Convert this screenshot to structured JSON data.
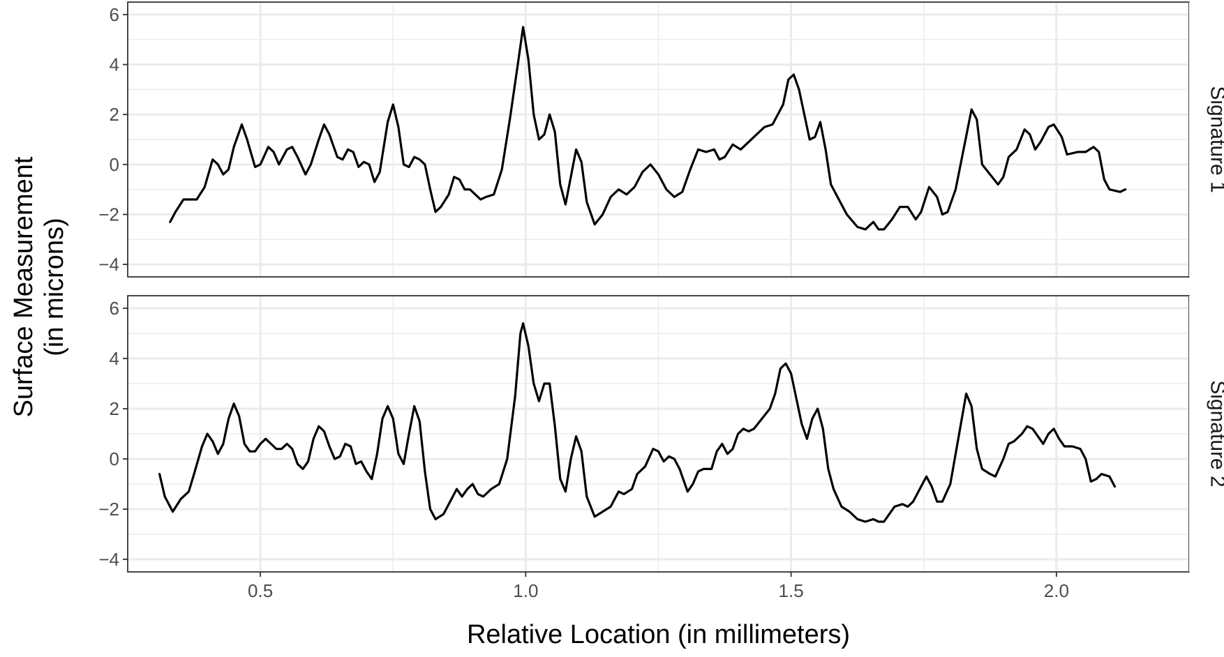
{
  "chart_data": {
    "type": "line",
    "xlabel": "Relative Location (in millimeters)",
    "ylabel_lines": [
      "Surface Measurement",
      "(in microns)"
    ],
    "xlim": [
      0.25,
      2.25
    ],
    "ylim": [
      -4.5,
      6.5
    ],
    "x_ticks": [
      0.5,
      1.0,
      1.5,
      2.0
    ],
    "x_tick_labels": [
      "0.5",
      "1.0",
      "1.5",
      "2.0"
    ],
    "y_ticks": [
      -4,
      -2,
      0,
      2,
      4,
      6
    ],
    "y_tick_labels": [
      "−4",
      "−2",
      "0",
      "2",
      "4",
      "6"
    ],
    "grid": true,
    "facet_position": "right",
    "line_color": "#000000",
    "grid_color": "#ebebeb",
    "panels": [
      {
        "label": "Signature 1",
        "points": [
          [
            0.33,
            -2.3
          ],
          [
            0.34,
            -1.9
          ],
          [
            0.355,
            -1.4
          ],
          [
            0.38,
            -1.4
          ],
          [
            0.395,
            -0.9
          ],
          [
            0.41,
            0.2
          ],
          [
            0.42,
            0.0
          ],
          [
            0.43,
            -0.4
          ],
          [
            0.44,
            -0.2
          ],
          [
            0.45,
            0.7
          ],
          [
            0.465,
            1.6
          ],
          [
            0.475,
            1.0
          ],
          [
            0.49,
            -0.1
          ],
          [
            0.5,
            0.0
          ],
          [
            0.515,
            0.7
          ],
          [
            0.525,
            0.5
          ],
          [
            0.535,
            0.0
          ],
          [
            0.55,
            0.6
          ],
          [
            0.56,
            0.7
          ],
          [
            0.57,
            0.3
          ],
          [
            0.585,
            -0.4
          ],
          [
            0.595,
            0.0
          ],
          [
            0.61,
            1.0
          ],
          [
            0.62,
            1.6
          ],
          [
            0.63,
            1.2
          ],
          [
            0.645,
            0.3
          ],
          [
            0.655,
            0.2
          ],
          [
            0.665,
            0.6
          ],
          [
            0.675,
            0.5
          ],
          [
            0.685,
            -0.1
          ],
          [
            0.695,
            0.1
          ],
          [
            0.705,
            0.0
          ],
          [
            0.715,
            -0.7
          ],
          [
            0.725,
            -0.3
          ],
          [
            0.74,
            1.7
          ],
          [
            0.75,
            2.4
          ],
          [
            0.76,
            1.5
          ],
          [
            0.77,
            0.0
          ],
          [
            0.78,
            -0.1
          ],
          [
            0.79,
            0.3
          ],
          [
            0.8,
            0.2
          ],
          [
            0.81,
            0.0
          ],
          [
            0.82,
            -1.0
          ],
          [
            0.83,
            -1.9
          ],
          [
            0.84,
            -1.7
          ],
          [
            0.855,
            -1.2
          ],
          [
            0.865,
            -0.5
          ],
          [
            0.875,
            -0.6
          ],
          [
            0.885,
            -1.0
          ],
          [
            0.895,
            -1.0
          ],
          [
            0.905,
            -1.2
          ],
          [
            0.915,
            -1.4
          ],
          [
            0.925,
            -1.3
          ],
          [
            0.94,
            -1.2
          ],
          [
            0.955,
            -0.2
          ],
          [
            0.97,
            1.8
          ],
          [
            0.985,
            4.0
          ],
          [
            0.995,
            5.5
          ],
          [
            1.005,
            4.2
          ],
          [
            1.015,
            2.0
          ],
          [
            1.025,
            1.0
          ],
          [
            1.035,
            1.2
          ],
          [
            1.045,
            2.0
          ],
          [
            1.055,
            1.3
          ],
          [
            1.065,
            -0.8
          ],
          [
            1.075,
            -1.6
          ],
          [
            1.085,
            -0.5
          ],
          [
            1.095,
            0.6
          ],
          [
            1.105,
            0.1
          ],
          [
            1.115,
            -1.5
          ],
          [
            1.13,
            -2.4
          ],
          [
            1.145,
            -2.0
          ],
          [
            1.16,
            -1.3
          ],
          [
            1.175,
            -1.0
          ],
          [
            1.19,
            -1.2
          ],
          [
            1.205,
            -0.9
          ],
          [
            1.22,
            -0.3
          ],
          [
            1.235,
            0.0
          ],
          [
            1.25,
            -0.4
          ],
          [
            1.265,
            -1.0
          ],
          [
            1.28,
            -1.3
          ],
          [
            1.295,
            -1.1
          ],
          [
            1.31,
            -0.2
          ],
          [
            1.325,
            0.6
          ],
          [
            1.34,
            0.5
          ],
          [
            1.355,
            0.6
          ],
          [
            1.365,
            0.2
          ],
          [
            1.375,
            0.3
          ],
          [
            1.39,
            0.8
          ],
          [
            1.405,
            0.6
          ],
          [
            1.42,
            0.9
          ],
          [
            1.435,
            1.2
          ],
          [
            1.45,
            1.5
          ],
          [
            1.465,
            1.6
          ],
          [
            1.475,
            2.0
          ],
          [
            1.485,
            2.4
          ],
          [
            1.495,
            3.4
          ],
          [
            1.505,
            3.6
          ],
          [
            1.515,
            3.0
          ],
          [
            1.525,
            2.0
          ],
          [
            1.535,
            1.0
          ],
          [
            1.545,
            1.1
          ],
          [
            1.555,
            1.7
          ],
          [
            1.565,
            0.6
          ],
          [
            1.575,
            -0.8
          ],
          [
            1.59,
            -1.4
          ],
          [
            1.605,
            -2.0
          ],
          [
            1.625,
            -2.5
          ],
          [
            1.64,
            -2.6
          ],
          [
            1.655,
            -2.3
          ],
          [
            1.665,
            -2.6
          ],
          [
            1.675,
            -2.6
          ],
          [
            1.69,
            -2.2
          ],
          [
            1.705,
            -1.7
          ],
          [
            1.72,
            -1.7
          ],
          [
            1.735,
            -2.2
          ],
          [
            1.745,
            -1.9
          ],
          [
            1.76,
            -0.9
          ],
          [
            1.775,
            -1.3
          ],
          [
            1.785,
            -2.0
          ],
          [
            1.795,
            -1.9
          ],
          [
            1.81,
            -1.0
          ],
          [
            1.825,
            0.6
          ],
          [
            1.84,
            2.2
          ],
          [
            1.85,
            1.8
          ],
          [
            1.86,
            0.0
          ],
          [
            1.875,
            -0.4
          ],
          [
            1.89,
            -0.8
          ],
          [
            1.9,
            -0.5
          ],
          [
            1.91,
            0.3
          ],
          [
            1.925,
            0.6
          ],
          [
            1.94,
            1.4
          ],
          [
            1.95,
            1.2
          ],
          [
            1.96,
            0.6
          ],
          [
            1.97,
            0.9
          ],
          [
            1.985,
            1.5
          ],
          [
            1.995,
            1.6
          ],
          [
            2.01,
            1.1
          ],
          [
            2.02,
            0.4
          ],
          [
            2.04,
            0.5
          ],
          [
            2.055,
            0.5
          ],
          [
            2.07,
            0.7
          ],
          [
            2.08,
            0.5
          ],
          [
            2.09,
            -0.6
          ],
          [
            2.1,
            -1.0
          ],
          [
            2.12,
            -1.1
          ],
          [
            2.13,
            -1.0
          ]
        ]
      },
      {
        "label": "Signature 2",
        "points": [
          [
            0.31,
            -0.6
          ],
          [
            0.32,
            -1.5
          ],
          [
            0.335,
            -2.1
          ],
          [
            0.35,
            -1.6
          ],
          [
            0.365,
            -1.3
          ],
          [
            0.375,
            -0.6
          ],
          [
            0.39,
            0.5
          ],
          [
            0.4,
            1.0
          ],
          [
            0.41,
            0.7
          ],
          [
            0.42,
            0.2
          ],
          [
            0.43,
            0.6
          ],
          [
            0.44,
            1.6
          ],
          [
            0.45,
            2.2
          ],
          [
            0.46,
            1.7
          ],
          [
            0.47,
            0.6
          ],
          [
            0.48,
            0.3
          ],
          [
            0.49,
            0.3
          ],
          [
            0.5,
            0.6
          ],
          [
            0.51,
            0.8
          ],
          [
            0.52,
            0.6
          ],
          [
            0.53,
            0.4
          ],
          [
            0.54,
            0.4
          ],
          [
            0.55,
            0.6
          ],
          [
            0.56,
            0.4
          ],
          [
            0.57,
            -0.2
          ],
          [
            0.58,
            -0.4
          ],
          [
            0.59,
            -0.1
          ],
          [
            0.6,
            0.8
          ],
          [
            0.61,
            1.3
          ],
          [
            0.62,
            1.1
          ],
          [
            0.63,
            0.5
          ],
          [
            0.64,
            0.0
          ],
          [
            0.65,
            0.1
          ],
          [
            0.66,
            0.6
          ],
          [
            0.67,
            0.5
          ],
          [
            0.68,
            -0.2
          ],
          [
            0.69,
            -0.1
          ],
          [
            0.7,
            -0.5
          ],
          [
            0.71,
            -0.8
          ],
          [
            0.72,
            0.2
          ],
          [
            0.73,
            1.6
          ],
          [
            0.74,
            2.1
          ],
          [
            0.75,
            1.6
          ],
          [
            0.76,
            0.2
          ],
          [
            0.77,
            -0.2
          ],
          [
            0.78,
            1.0
          ],
          [
            0.79,
            2.1
          ],
          [
            0.8,
            1.5
          ],
          [
            0.81,
            -0.5
          ],
          [
            0.82,
            -2.0
          ],
          [
            0.83,
            -2.4
          ],
          [
            0.845,
            -2.2
          ],
          [
            0.86,
            -1.6
          ],
          [
            0.87,
            -1.2
          ],
          [
            0.88,
            -1.5
          ],
          [
            0.89,
            -1.2
          ],
          [
            0.9,
            -1.0
          ],
          [
            0.91,
            -1.4
          ],
          [
            0.92,
            -1.5
          ],
          [
            0.935,
            -1.2
          ],
          [
            0.95,
            -1.0
          ],
          [
            0.965,
            0.0
          ],
          [
            0.98,
            2.5
          ],
          [
            0.99,
            5.0
          ],
          [
            0.995,
            5.4
          ],
          [
            1.005,
            4.5
          ],
          [
            1.015,
            3.0
          ],
          [
            1.025,
            2.3
          ],
          [
            1.035,
            3.0
          ],
          [
            1.045,
            3.0
          ],
          [
            1.055,
            1.3
          ],
          [
            1.065,
            -0.8
          ],
          [
            1.075,
            -1.3
          ],
          [
            1.085,
            0.0
          ],
          [
            1.095,
            0.9
          ],
          [
            1.105,
            0.3
          ],
          [
            1.115,
            -1.5
          ],
          [
            1.13,
            -2.3
          ],
          [
            1.145,
            -2.1
          ],
          [
            1.16,
            -1.9
          ],
          [
            1.175,
            -1.3
          ],
          [
            1.185,
            -1.4
          ],
          [
            1.2,
            -1.2
          ],
          [
            1.21,
            -0.6
          ],
          [
            1.225,
            -0.3
          ],
          [
            1.24,
            0.4
          ],
          [
            1.25,
            0.3
          ],
          [
            1.26,
            -0.1
          ],
          [
            1.27,
            0.1
          ],
          [
            1.28,
            0.0
          ],
          [
            1.29,
            -0.4
          ],
          [
            1.305,
            -1.3
          ],
          [
            1.315,
            -1.0
          ],
          [
            1.325,
            -0.5
          ],
          [
            1.335,
            -0.4
          ],
          [
            1.35,
            -0.4
          ],
          [
            1.36,
            0.3
          ],
          [
            1.37,
            0.6
          ],
          [
            1.38,
            0.2
          ],
          [
            1.39,
            0.4
          ],
          [
            1.4,
            1.0
          ],
          [
            1.41,
            1.2
          ],
          [
            1.42,
            1.1
          ],
          [
            1.43,
            1.2
          ],
          [
            1.445,
            1.6
          ],
          [
            1.46,
            2.0
          ],
          [
            1.47,
            2.6
          ],
          [
            1.48,
            3.6
          ],
          [
            1.49,
            3.8
          ],
          [
            1.5,
            3.4
          ],
          [
            1.51,
            2.4
          ],
          [
            1.52,
            1.4
          ],
          [
            1.53,
            0.8
          ],
          [
            1.54,
            1.6
          ],
          [
            1.55,
            2.0
          ],
          [
            1.56,
            1.2
          ],
          [
            1.57,
            -0.4
          ],
          [
            1.58,
            -1.2
          ],
          [
            1.595,
            -1.9
          ],
          [
            1.61,
            -2.1
          ],
          [
            1.625,
            -2.4
          ],
          [
            1.64,
            -2.5
          ],
          [
            1.655,
            -2.4
          ],
          [
            1.665,
            -2.5
          ],
          [
            1.675,
            -2.5
          ],
          [
            1.685,
            -2.2
          ],
          [
            1.695,
            -1.9
          ],
          [
            1.71,
            -1.8
          ],
          [
            1.72,
            -1.9
          ],
          [
            1.73,
            -1.7
          ],
          [
            1.745,
            -1.1
          ],
          [
            1.755,
            -0.7
          ],
          [
            1.765,
            -1.1
          ],
          [
            1.775,
            -1.7
          ],
          [
            1.785,
            -1.7
          ],
          [
            1.8,
            -1.0
          ],
          [
            1.815,
            0.8
          ],
          [
            1.83,
            2.6
          ],
          [
            1.84,
            2.1
          ],
          [
            1.85,
            0.4
          ],
          [
            1.86,
            -0.4
          ],
          [
            1.875,
            -0.6
          ],
          [
            1.885,
            -0.7
          ],
          [
            1.9,
            0.0
          ],
          [
            1.91,
            0.6
          ],
          [
            1.92,
            0.7
          ],
          [
            1.935,
            1.0
          ],
          [
            1.945,
            1.3
          ],
          [
            1.955,
            1.2
          ],
          [
            1.965,
            0.9
          ],
          [
            1.975,
            0.6
          ],
          [
            1.985,
            1.0
          ],
          [
            1.995,
            1.2
          ],
          [
            2.005,
            0.8
          ],
          [
            2.015,
            0.5
          ],
          [
            2.03,
            0.5
          ],
          [
            2.045,
            0.4
          ],
          [
            2.055,
            0.0
          ],
          [
            2.065,
            -0.9
          ],
          [
            2.075,
            -0.8
          ],
          [
            2.085,
            -0.6
          ],
          [
            2.1,
            -0.7
          ],
          [
            2.11,
            -1.1
          ]
        ]
      }
    ]
  }
}
